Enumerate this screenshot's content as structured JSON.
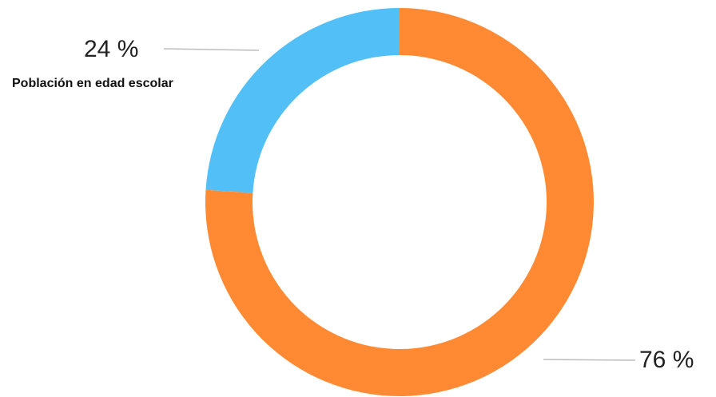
{
  "chart_data": {
    "type": "pie",
    "donut": true,
    "categories": [
      "Población en edad escolar",
      ""
    ],
    "values": [
      24,
      76
    ],
    "value_labels": [
      "24 %",
      "76 %"
    ],
    "colors": [
      "#52BFF7",
      "#FF8A33"
    ],
    "title": "",
    "legend": "none"
  }
}
